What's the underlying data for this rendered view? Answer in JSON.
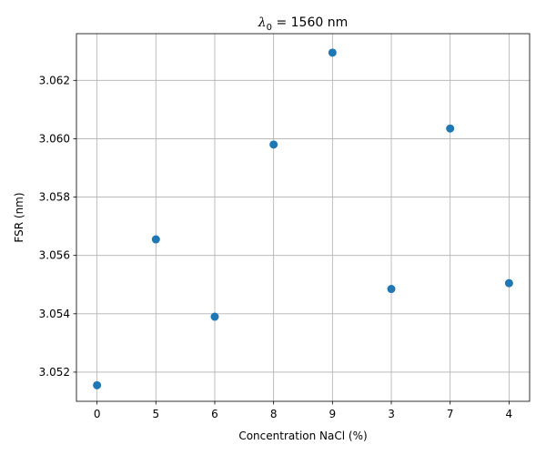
{
  "chart_data": {
    "type": "scatter",
    "title": {
      "symbol": "λ",
      "subscript": "0",
      "rest": " = 1560 nm"
    },
    "xlabel": "Concentration NaCl (%)",
    "ylabel": "FSR (nm)",
    "categories": [
      "0",
      "5",
      "6",
      "8",
      "9",
      "3",
      "7",
      "4"
    ],
    "values": [
      3.05155,
      3.05655,
      3.0539,
      3.0598,
      3.06295,
      3.05485,
      3.06035,
      3.05505
    ],
    "ylim": [
      3.051,
      3.0636
    ],
    "yticks": [
      3.052,
      3.054,
      3.056,
      3.058,
      3.06,
      3.062
    ],
    "ytick_labels": [
      "3.052",
      "3.054",
      "3.056",
      "3.058",
      "3.060",
      "3.062"
    ],
    "grid": true,
    "marker_color": "#1f77b4"
  }
}
